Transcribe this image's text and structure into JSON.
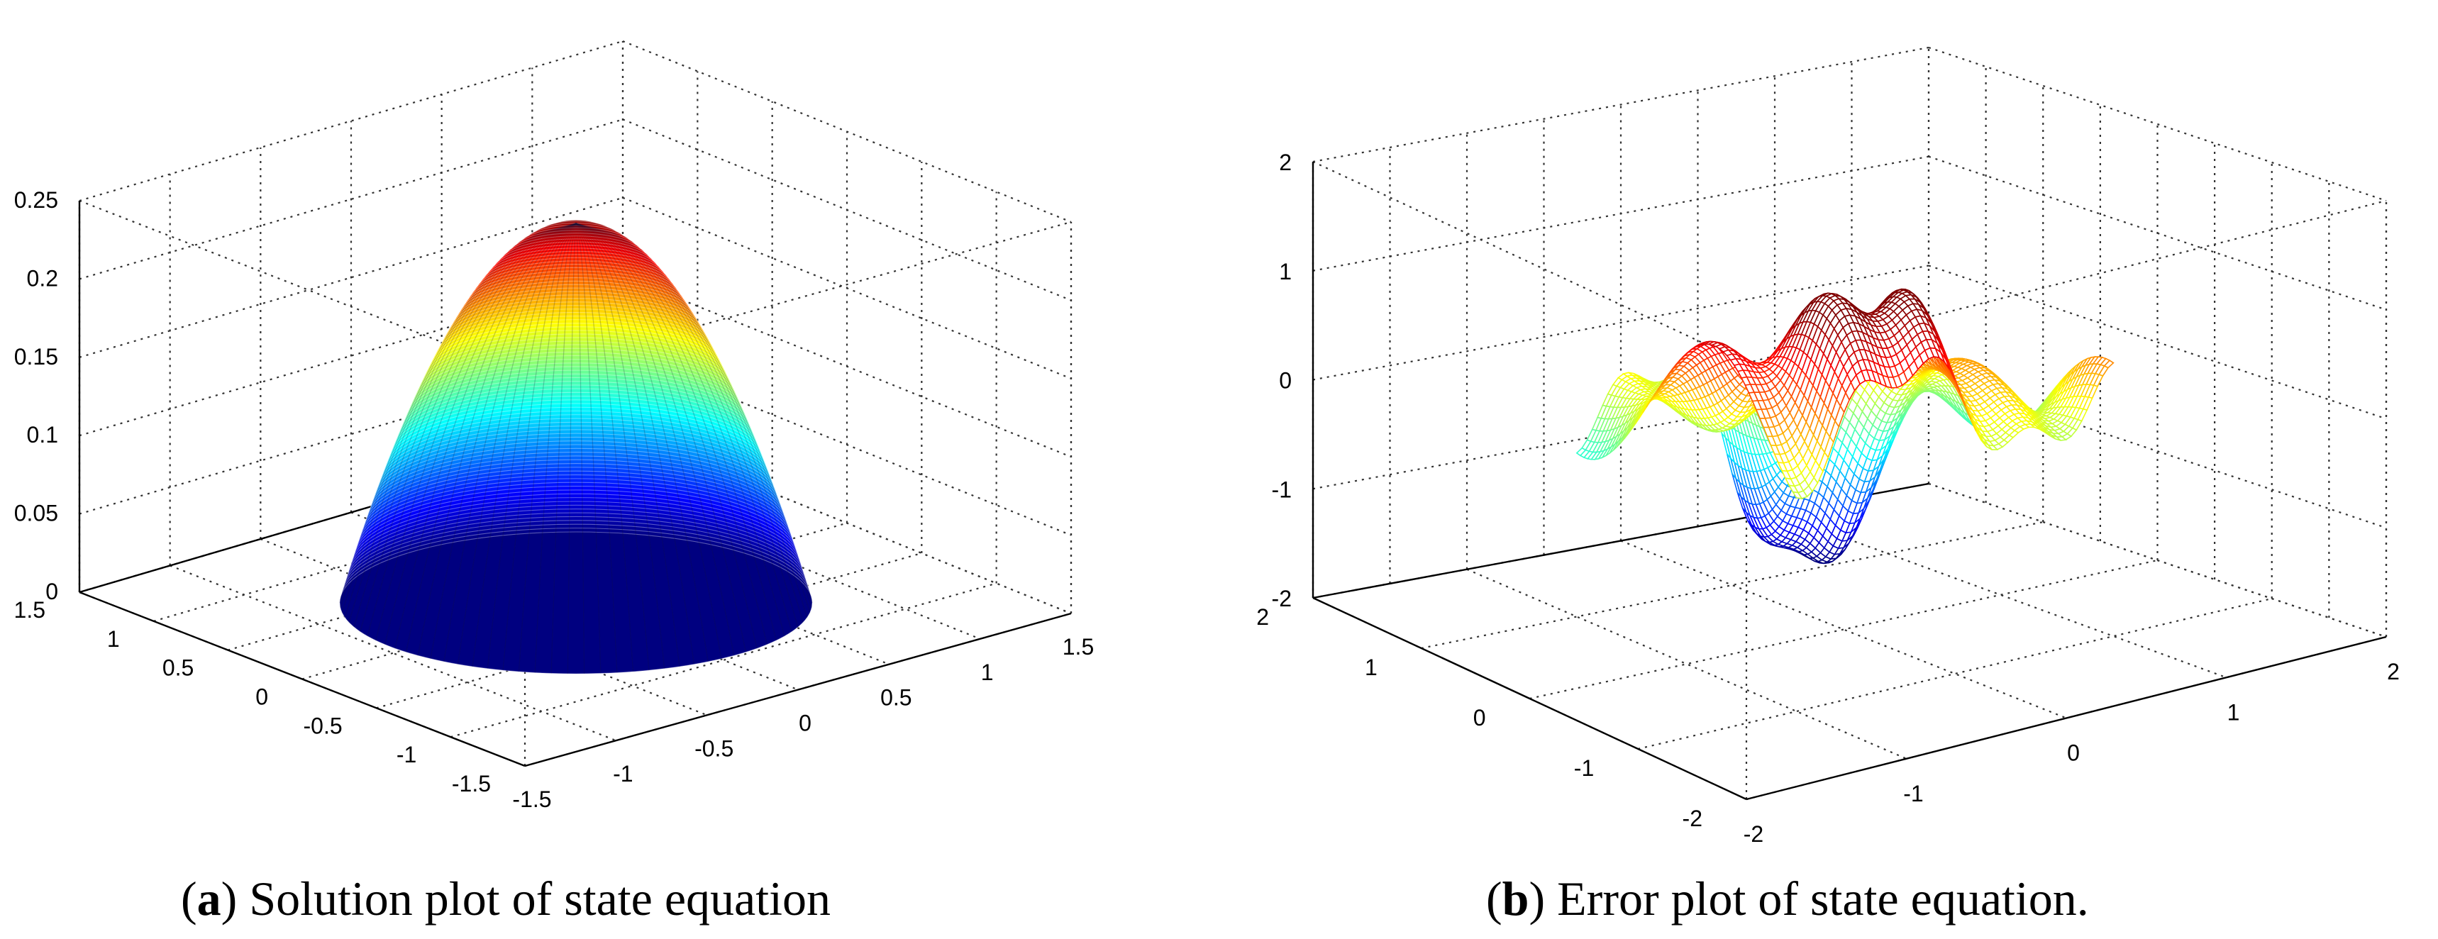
{
  "chart_data": [
    {
      "type": "surface",
      "panel": "a",
      "caption_letter": "a",
      "caption_text": "Solution plot of state equation",
      "function": "z = 0.25 - x^2 - y^2, clipped to z >= 0",
      "x": {
        "range": [
          -1.5,
          1.5
        ],
        "ticks": [
          "-1.5",
          "-1",
          "-0.5",
          "0",
          "0.5",
          "1",
          "1.5"
        ]
      },
      "y": {
        "range": [
          -1.5,
          1.5
        ],
        "ticks": [
          "-1.5",
          "-1",
          "-0.5",
          "0",
          "0.5",
          "1",
          "1.5"
        ]
      },
      "z": {
        "range": [
          0,
          0.25
        ],
        "ticks": [
          "0",
          "0.05",
          "0.1",
          "0.15",
          "0.2",
          "0.25"
        ]
      },
      "peak": 0.25,
      "colormap": "jet",
      "grid": true
    },
    {
      "type": "surface",
      "panel": "b",
      "caption_letter": "b",
      "caption_text": "Error plot of state equation.",
      "x": {
        "range": [
          -2,
          2
        ],
        "ticks": [
          "-2",
          "-1",
          "0",
          "1",
          "2"
        ]
      },
      "y": {
        "range": [
          -2,
          2
        ],
        "ticks": [
          "-2",
          "-1",
          "0",
          "1",
          "2"
        ]
      },
      "z": {
        "range": [
          -2,
          2
        ],
        "ticks": [
          "-2",
          "-1",
          "0",
          "1",
          "2"
        ]
      },
      "approx_max": 1.3,
      "approx_min": -1.8,
      "colormap": "jet",
      "grid": true
    }
  ]
}
